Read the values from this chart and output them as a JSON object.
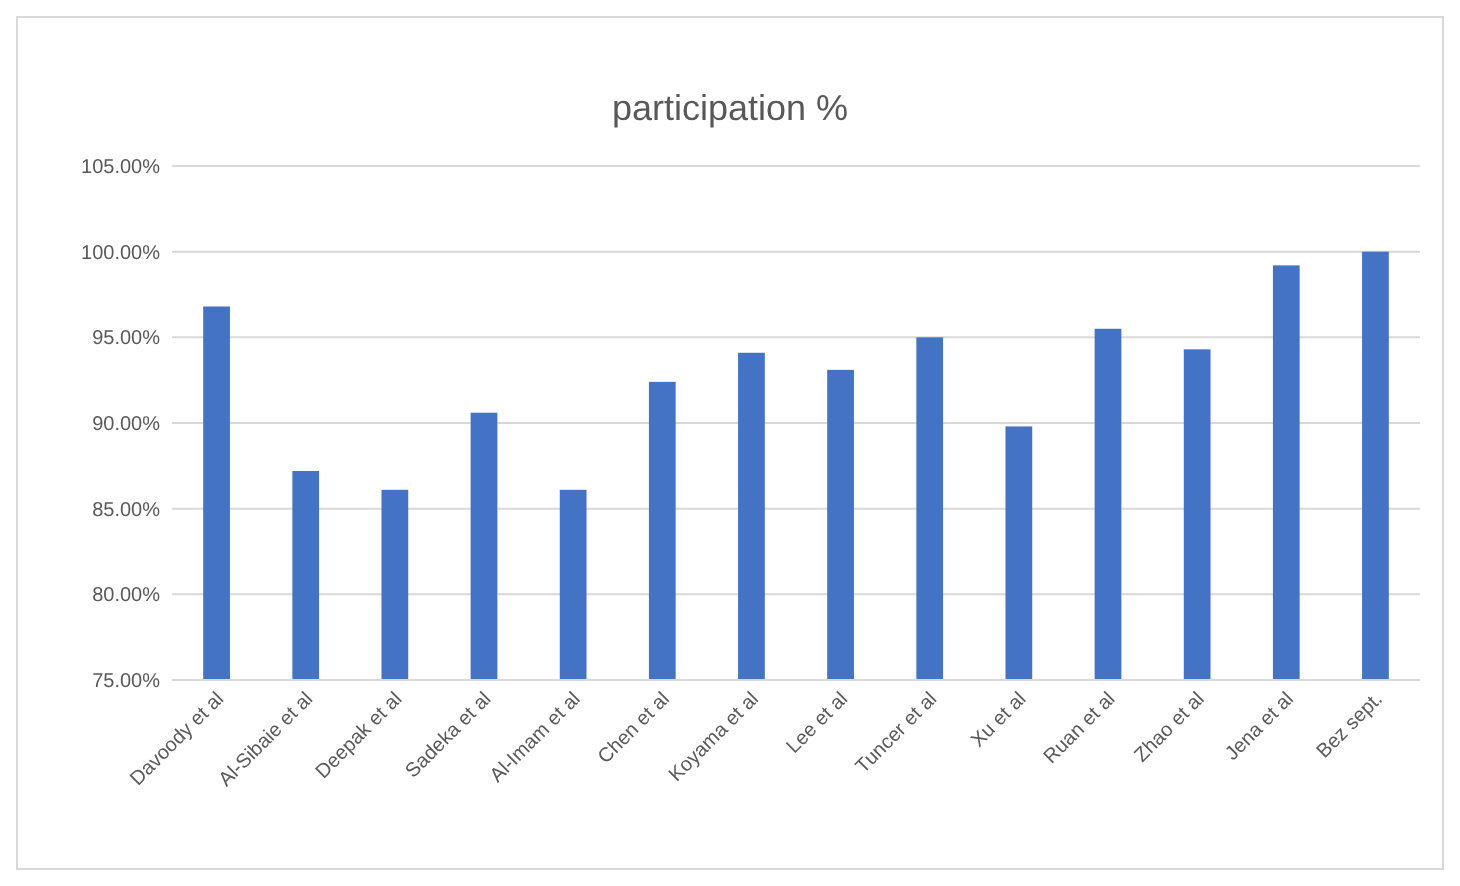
{
  "chart_data": {
    "type": "bar",
    "title": "participation %",
    "categories": [
      "Davoody et al",
      "Al-Sibaie et al",
      "Deepak et al",
      "Sadeka et al",
      "Al-Imam et al",
      "Chen et al",
      "Koyama et al",
      "Lee et al",
      "Tuncer et al",
      "Xu et al",
      "Ruan et al",
      "Zhao et al",
      "Jena et al",
      "Bez sept."
    ],
    "values": [
      96.8,
      87.2,
      86.1,
      90.6,
      86.1,
      92.4,
      94.1,
      93.1,
      95.0,
      89.8,
      95.5,
      94.3,
      99.2,
      100.0
    ],
    "color": "#4472c4",
    "ylim": [
      75,
      105
    ],
    "yticks": [
      {
        "value": 75,
        "label": "75.00%"
      },
      {
        "value": 80,
        "label": "80.00%"
      },
      {
        "value": 85,
        "label": "85.00%"
      },
      {
        "value": 90,
        "label": "90.00%"
      },
      {
        "value": 95,
        "label": "95.00%"
      },
      {
        "value": 100,
        "label": "100.00%"
      },
      {
        "value": 105,
        "label": "105.00%"
      }
    ],
    "grid": "y"
  }
}
